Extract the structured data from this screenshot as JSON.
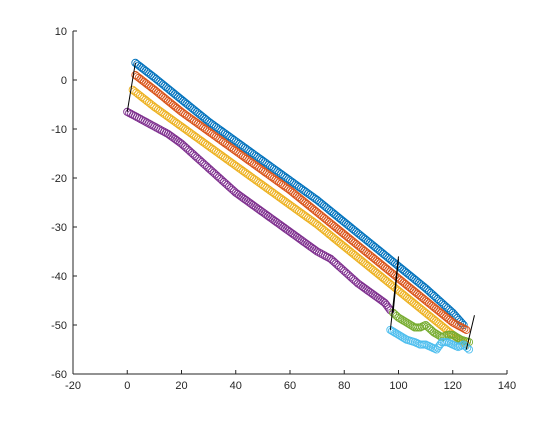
{
  "chart_data": {
    "type": "scatter",
    "title": "",
    "xlabel": "",
    "ylabel": "",
    "xlim": [
      -20,
      140
    ],
    "ylim": [
      -60,
      10
    ],
    "x_ticks": [
      "-20",
      "0",
      "20",
      "40",
      "60",
      "80",
      "100",
      "120",
      "140"
    ],
    "y_ticks": [
      "10",
      "0",
      "-10",
      "-20",
      "-30",
      "-40",
      "-50",
      "-60"
    ],
    "grid": false,
    "legend": "none",
    "marker": "open-circle",
    "series": [
      {
        "color": "#0072BD",
        "x": [
          3,
          10,
          20,
          30,
          40,
          50,
          60,
          70,
          80,
          90,
          100,
          110,
          120,
          124
        ],
        "y": [
          3.5,
          0.5,
          -4,
          -8.5,
          -12.5,
          -16.5,
          -20.5,
          -24.5,
          -29,
          -33.5,
          -38,
          -42.5,
          -47.5,
          -50
        ]
      },
      {
        "color": "#D95319",
        "x": [
          3,
          10,
          20,
          30,
          40,
          50,
          60,
          70,
          80,
          90,
          100,
          110,
          120,
          125
        ],
        "y": [
          1,
          -2,
          -6.5,
          -10.5,
          -14.5,
          -18.5,
          -22.5,
          -27,
          -31.5,
          -36,
          -40.5,
          -45,
          -49.5,
          -51
        ]
      },
      {
        "color": "#EDB120",
        "x": [
          2,
          10,
          20,
          30,
          40,
          50,
          60,
          70,
          80,
          90,
          100,
          110,
          120,
          125
        ],
        "y": [
          -2,
          -5.5,
          -9.5,
          -13.5,
          -17.5,
          -21.5,
          -25.5,
          -29.5,
          -34,
          -38.5,
          -43,
          -47.5,
          -52,
          -54
        ]
      },
      {
        "color": "#7E2F8E",
        "x": [
          0,
          5,
          10,
          15,
          20,
          25,
          30,
          35,
          40,
          45,
          50,
          55,
          60,
          65,
          70,
          75,
          80,
          85,
          90,
          95,
          97
        ],
        "y": [
          -6.5,
          -8,
          -9.5,
          -11,
          -13,
          -15.5,
          -18,
          -20.5,
          -23,
          -25,
          -27,
          -29,
          -31,
          -33,
          -35,
          -36.5,
          -39,
          -41.5,
          -43.5,
          -45.5,
          -47
        ]
      },
      {
        "color": "#77AC30",
        "x": [
          98,
          100,
          103,
          106,
          108,
          110,
          113,
          116,
          118,
          120,
          123,
          126
        ],
        "y": [
          -47.5,
          -48.5,
          -49.5,
          -50.5,
          -50.5,
          -50,
          -51.5,
          -52.5,
          -52,
          -52,
          -53,
          -53.5
        ]
      },
      {
        "color": "#4DBEEE",
        "x": [
          97,
          100,
          103,
          106,
          108,
          110,
          112,
          114,
          116,
          118,
          120,
          122,
          124,
          126
        ],
        "y": [
          -51,
          -52,
          -53,
          -53.5,
          -54,
          -54,
          -54.5,
          -55,
          -53.5,
          -53.5,
          -54,
          -54.5,
          -54,
          -55
        ]
      }
    ],
    "connector_lines": [
      {
        "color": "#000000",
        "x": [
          3,
          0
        ],
        "y": [
          3.5,
          -6.5
        ]
      },
      {
        "color": "#000000",
        "x": [
          100,
          97
        ],
        "y": [
          -36,
          -51
        ]
      },
      {
        "color": "#000000",
        "x": [
          100,
          98
        ],
        "y": [
          -36.5,
          -47.5
        ]
      },
      {
        "color": "#000000",
        "x": [
          128,
          125
        ],
        "y": [
          -48,
          -55
        ]
      }
    ]
  }
}
